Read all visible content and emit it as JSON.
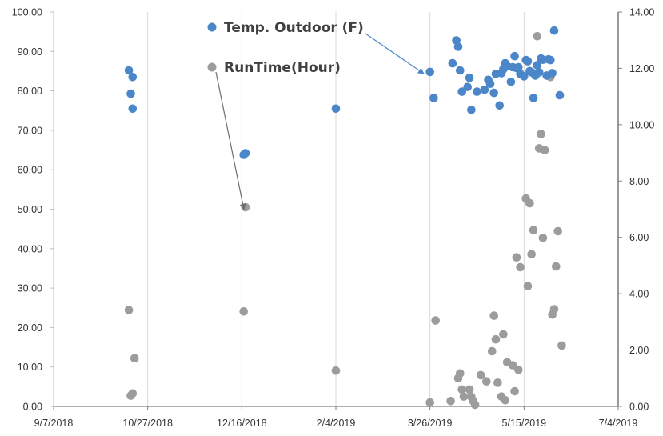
{
  "chart_data": {
    "type": "scatter",
    "title": "",
    "xlabel": "",
    "ylabel": "",
    "x_axis": {
      "type": "date",
      "range": [
        "2018-09-07",
        "2019-07-04"
      ],
      "tick_labels": [
        "9/7/2018",
        "10/27/2018",
        "12/16/2018",
        "2/4/2019",
        "3/26/2019",
        "5/15/2019",
        "7/4/2019"
      ],
      "grid": true
    },
    "y_axis_left": {
      "range": [
        0,
        100
      ],
      "tick_labels": [
        "0.00",
        "10.00",
        "20.00",
        "30.00",
        "40.00",
        "50.00",
        "60.00",
        "70.00",
        "80.00",
        "90.00",
        "100.00"
      ],
      "grid": false
    },
    "y_axis_right": {
      "range": [
        0,
        14
      ],
      "tick_labels": [
        "0.00",
        "2.00",
        "4.00",
        "6.00",
        "8.00",
        "10.00",
        "12.00",
        "14.00"
      ]
    },
    "legend": {
      "placement": "top-center, with arrows pointing to series"
    },
    "series": [
      {
        "name": "Temp. Outdoor (F)",
        "axis": "left",
        "color": "#4a86c8",
        "points": [
          [
            "2018-10-17",
            85.2
          ],
          [
            "2018-10-18",
            79.3
          ],
          [
            "2018-10-19",
            83.5
          ],
          [
            "2018-10-19",
            75.5
          ],
          [
            "2018-12-17",
            63.8
          ],
          [
            "2018-12-18",
            64.2
          ],
          [
            "2019-02-04",
            75.5
          ],
          [
            "2019-03-26",
            84.8
          ],
          [
            "2019-03-28",
            78.2
          ],
          [
            "2019-04-07",
            87.0
          ],
          [
            "2019-04-09",
            92.8
          ],
          [
            "2019-04-10",
            91.2
          ],
          [
            "2019-04-11",
            85.2
          ],
          [
            "2019-04-12",
            79.8
          ],
          [
            "2019-04-15",
            81.0
          ],
          [
            "2019-04-16",
            83.3
          ],
          [
            "2019-04-17",
            75.2
          ],
          [
            "2019-04-20",
            79.8
          ],
          [
            "2019-04-24",
            80.3
          ],
          [
            "2019-04-26",
            82.8
          ],
          [
            "2019-04-27",
            81.8
          ],
          [
            "2019-04-29",
            79.5
          ],
          [
            "2019-04-30",
            84.3
          ],
          [
            "2019-05-02",
            76.3
          ],
          [
            "2019-05-03",
            84.5
          ],
          [
            "2019-05-04",
            85.5
          ],
          [
            "2019-05-05",
            87.0
          ],
          [
            "2019-05-06",
            86.3
          ],
          [
            "2019-05-08",
            82.3
          ],
          [
            "2019-05-09",
            86.0
          ],
          [
            "2019-05-10",
            88.8
          ],
          [
            "2019-05-11",
            85.8
          ],
          [
            "2019-05-12",
            86.0
          ],
          [
            "2019-05-13",
            84.3
          ],
          [
            "2019-05-15",
            83.7
          ],
          [
            "2019-05-16",
            87.8
          ],
          [
            "2019-05-17",
            87.5
          ],
          [
            "2019-05-18",
            85.0
          ],
          [
            "2019-05-19",
            84.7
          ],
          [
            "2019-05-20",
            78.2
          ],
          [
            "2019-05-21",
            83.9
          ],
          [
            "2019-05-22",
            86.5
          ],
          [
            "2019-05-23",
            84.7
          ],
          [
            "2019-05-24",
            88.2
          ],
          [
            "2019-05-25",
            87.9
          ],
          [
            "2019-05-27",
            83.9
          ],
          [
            "2019-05-28",
            88.0
          ],
          [
            "2019-05-29",
            87.8
          ],
          [
            "2019-05-30",
            84.5
          ],
          [
            "2019-05-31",
            95.3
          ],
          [
            "2019-06-03",
            78.9
          ]
        ]
      },
      {
        "name": "RunTime(Hour)",
        "axis": "right",
        "color": "#9c9c9c",
        "points": [
          [
            "2018-10-17",
            3.42
          ],
          [
            "2018-10-18",
            0.38
          ],
          [
            "2018-10-19",
            0.46
          ],
          [
            "2018-10-20",
            1.71
          ],
          [
            "2018-12-17",
            3.37
          ],
          [
            "2018-12-18",
            7.07
          ],
          [
            "2019-02-04",
            1.27
          ],
          [
            "2019-03-26",
            0.14
          ],
          [
            "2019-03-29",
            3.05
          ],
          [
            "2019-04-06",
            0.19
          ],
          [
            "2019-04-10",
            1.0
          ],
          [
            "2019-04-11",
            1.17
          ],
          [
            "2019-04-12",
            0.6
          ],
          [
            "2019-04-13",
            0.35
          ],
          [
            "2019-04-16",
            0.6
          ],
          [
            "2019-04-17",
            0.34
          ],
          [
            "2019-04-18",
            0.19
          ],
          [
            "2019-04-19",
            0.06
          ],
          [
            "2019-04-22",
            1.11
          ],
          [
            "2019-04-25",
            0.89
          ],
          [
            "2019-04-28",
            1.96
          ],
          [
            "2019-04-29",
            3.22
          ],
          [
            "2019-04-30",
            2.38
          ],
          [
            "2019-05-01",
            0.84
          ],
          [
            "2019-05-03",
            0.35
          ],
          [
            "2019-05-04",
            2.56
          ],
          [
            "2019-05-05",
            0.22
          ],
          [
            "2019-05-06",
            1.57
          ],
          [
            "2019-05-09",
            1.46
          ],
          [
            "2019-05-10",
            0.54
          ],
          [
            "2019-05-11",
            5.29
          ],
          [
            "2019-05-12",
            1.3
          ],
          [
            "2019-05-13",
            4.94
          ],
          [
            "2019-05-16",
            7.38
          ],
          [
            "2019-05-17",
            4.27
          ],
          [
            "2019-05-18",
            7.21
          ],
          [
            "2019-05-19",
            5.4
          ],
          [
            "2019-05-20",
            6.26
          ],
          [
            "2019-05-22",
            13.14
          ],
          [
            "2019-05-23",
            9.16
          ],
          [
            "2019-05-24",
            9.67
          ],
          [
            "2019-05-25",
            5.98
          ],
          [
            "2019-05-26",
            9.1
          ],
          [
            "2019-05-29",
            11.69
          ],
          [
            "2019-05-30",
            3.26
          ],
          [
            "2019-05-31",
            3.45
          ],
          [
            "2019-06-01",
            4.97
          ],
          [
            "2019-06-02",
            6.22
          ],
          [
            "2019-06-04",
            2.16
          ]
        ]
      }
    ]
  }
}
